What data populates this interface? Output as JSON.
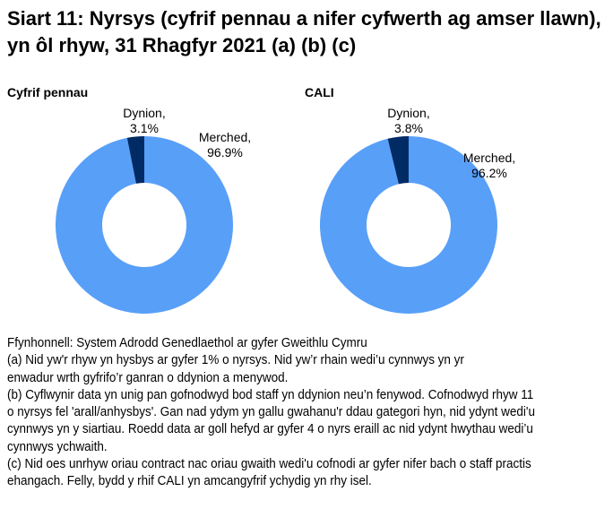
{
  "title": "Siart 11: Nyrsys (cyfrif pennau a nifer cyfwerth ag amser llawn), yn ôl rhyw, 31 Rhagfyr 2021 (a) (b) (c)",
  "colors": {
    "Merched": "#589ff8",
    "Dynion": "#002b65"
  },
  "chart_data": [
    {
      "type": "pie",
      "subtitle": "Cyfrif pennau",
      "donut": true,
      "slices": [
        {
          "name": "Merched",
          "value": 96.9,
          "label1": "Merched,",
          "label2": "96.9%"
        },
        {
          "name": "Dynion",
          "value": 3.1,
          "label1": "Dynion,",
          "label2": "3.1%"
        }
      ]
    },
    {
      "type": "pie",
      "subtitle": "CALI",
      "donut": true,
      "slices": [
        {
          "name": "Merched",
          "value": 96.2,
          "label1": "Merched,",
          "label2": "96.2%"
        },
        {
          "name": "Dynion",
          "value": 3.8,
          "label1": "Dynion,",
          "label2": "3.8%"
        }
      ]
    }
  ],
  "notes": [
    "Ffynhonnell: System Adrodd Genedlaethol ar gyfer Gweithlu Cymru",
    "(a) Nid yw'r rhyw yn hysbys ar gyfer 1% o nyrsys. Nid yw’r rhain wedi’u cynnwys yn yr",
    "enwadur wrth gyfrifo’r ganran o ddynion a menywod.",
    "(b) Cyflwynir data yn unig pan gofnodwyd bod staff yn ddynion neu’n fenywod. Cofnodwyd rhyw 11",
    "o nyrsys fel 'arall/anhysbys'. Gan nad ydym yn gallu gwahanu'r ddau gategori hyn, nid ydynt wedi'u",
    "cynnwys yn y siartiau. Roedd data ar goll hefyd ar gyfer 4 o nyrs eraill ac nid ydynt hwythau wedi’u",
    "cynnwys ychwaith.",
    "(c) Nid oes unrhyw oriau contract nac oriau gwaith wedi'u cofnodi ar gyfer nifer bach o staff practis",
    "ehangach. Felly, bydd y rhif CALI yn amcangyfrif ychydig yn rhy isel."
  ]
}
